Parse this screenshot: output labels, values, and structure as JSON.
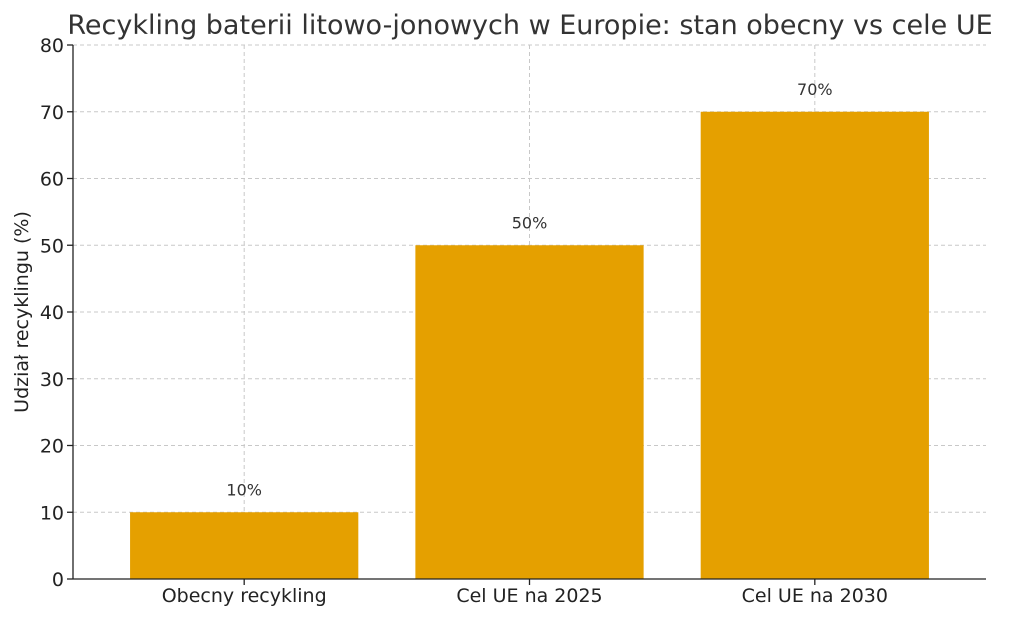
{
  "chart_data": {
    "type": "bar",
    "title": "Recykling baterii litowo-jonowych w Europie: stan obecny vs cele UE",
    "xlabel": "",
    "ylabel": "Udział recyklingu (%)",
    "categories": [
      "Obecny recykling",
      "Cel UE na 2025",
      "Cel UE na 2030"
    ],
    "values": [
      10,
      50,
      70
    ],
    "data_labels": [
      "10%",
      "50%",
      "70%"
    ],
    "ylim": [
      0,
      80
    ],
    "yticks": [
      0,
      10,
      20,
      30,
      40,
      50,
      60,
      70,
      80
    ],
    "grid": true,
    "bar_color": "#E5A000"
  }
}
